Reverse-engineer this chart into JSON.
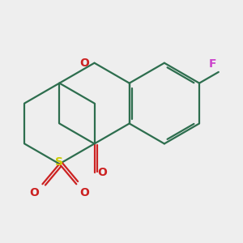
{
  "background_color": "#eeeeee",
  "bond_color": "#2d6e4e",
  "bond_width": 1.6,
  "dbo": 0.07,
  "atom_colors": {
    "F": "#cc44cc",
    "O": "#cc2222",
    "S": "#cccc00"
  },
  "figsize": [
    3.0,
    3.0
  ],
  "dpi": 100
}
